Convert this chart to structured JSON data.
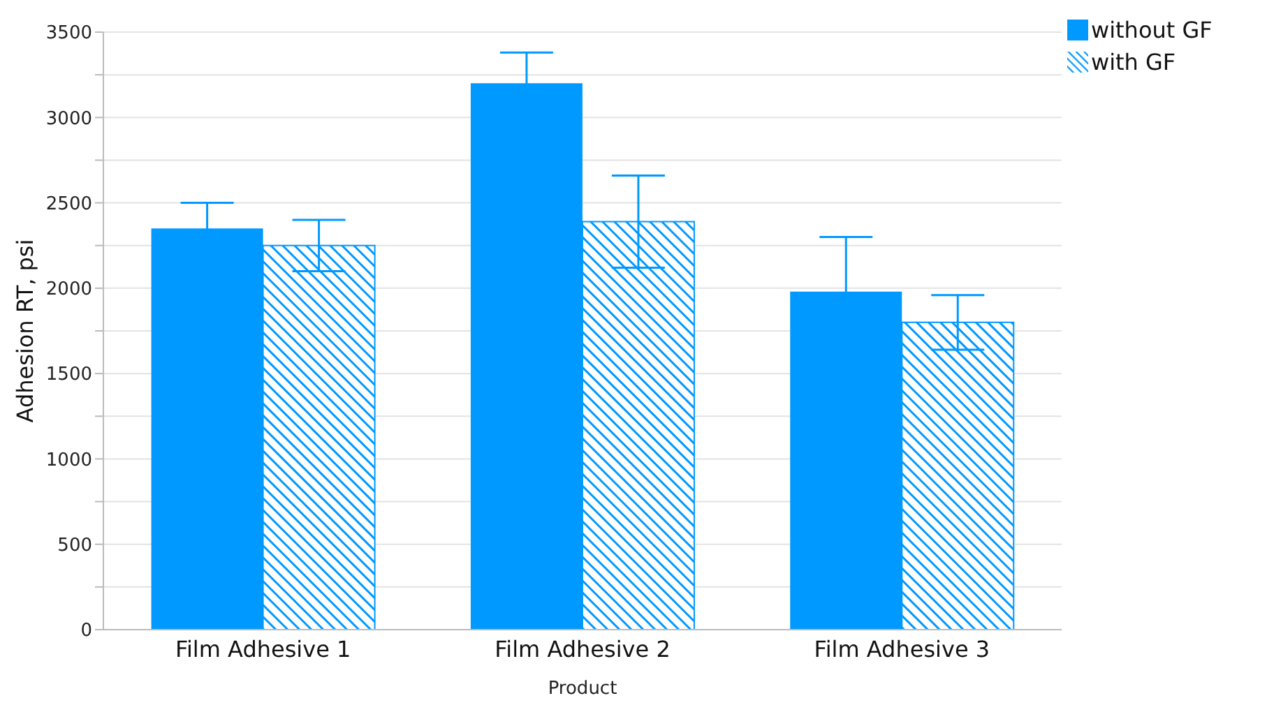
{
  "chart_data": {
    "type": "bar",
    "xlabel": "Product",
    "ylabel": "Adhesion RT, psi",
    "categories": [
      "Film Adhesive 1",
      "Film Adhesive 2",
      "Film Adhesive 3"
    ],
    "series": [
      {
        "name": "without GF",
        "color": "#0099ff",
        "values": [
          2350,
          3200,
          1980
        ],
        "errors": [
          150,
          180,
          320
        ]
      },
      {
        "name": "with GF",
        "color": "#0099ff",
        "values": [
          2250,
          2390,
          1800
        ],
        "errors": [
          150,
          270,
          160
        ]
      }
    ],
    "ylim": [
      0,
      3500
    ],
    "yticks": [
      0,
      {
        "value": 250,
        "label": null
      },
      500,
      {
        "value": 750,
        "label": null
      },
      1000,
      {
        "value": 1250,
        "label": null
      },
      1500,
      {
        "value": 1750,
        "label": null
      },
      2000,
      {
        "value": 2250,
        "label": null
      },
      2500,
      {
        "value": 2750,
        "label": null
      },
      3000,
      {
        "value": 3250,
        "label": null
      },
      3500
    ],
    "grid": "y",
    "legend": "top right"
  }
}
